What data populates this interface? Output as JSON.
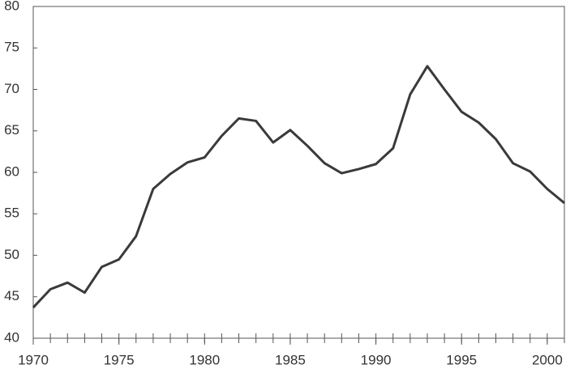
{
  "chart_data": {
    "type": "line",
    "x": [
      1970,
      1971,
      1972,
      1973,
      1974,
      1975,
      1976,
      1977,
      1978,
      1979,
      1980,
      1981,
      1982,
      1983,
      1984,
      1985,
      1986,
      1987,
      1988,
      1989,
      1990,
      1991,
      1992,
      1993,
      1994,
      1995,
      1996,
      1997,
      1998,
      1999,
      2000,
      2001
    ],
    "series": [
      {
        "color": "#3a3a3a",
        "values": [
          43.7,
          45.9,
          46.7,
          45.5,
          48.6,
          49.5,
          52.3,
          58.0,
          59.8,
          61.2,
          61.8,
          64.4,
          66.5,
          66.2,
          63.6,
          65.1,
          63.2,
          61.1,
          59.9,
          60.4,
          61.0,
          62.9,
          69.4,
          72.8,
          70.0,
          67.3,
          66.0,
          64.0,
          61.1,
          60.1,
          58.0,
          56.3
        ]
      }
    ],
    "xlim": [
      1970,
      2001
    ],
    "xticks": [
      1970,
      1975,
      1980,
      1985,
      1990,
      1995,
      2000
    ],
    "ylim": [
      40,
      80
    ],
    "yticks": [
      40,
      45,
      50,
      55,
      60,
      65,
      70,
      75,
      80
    ]
  }
}
